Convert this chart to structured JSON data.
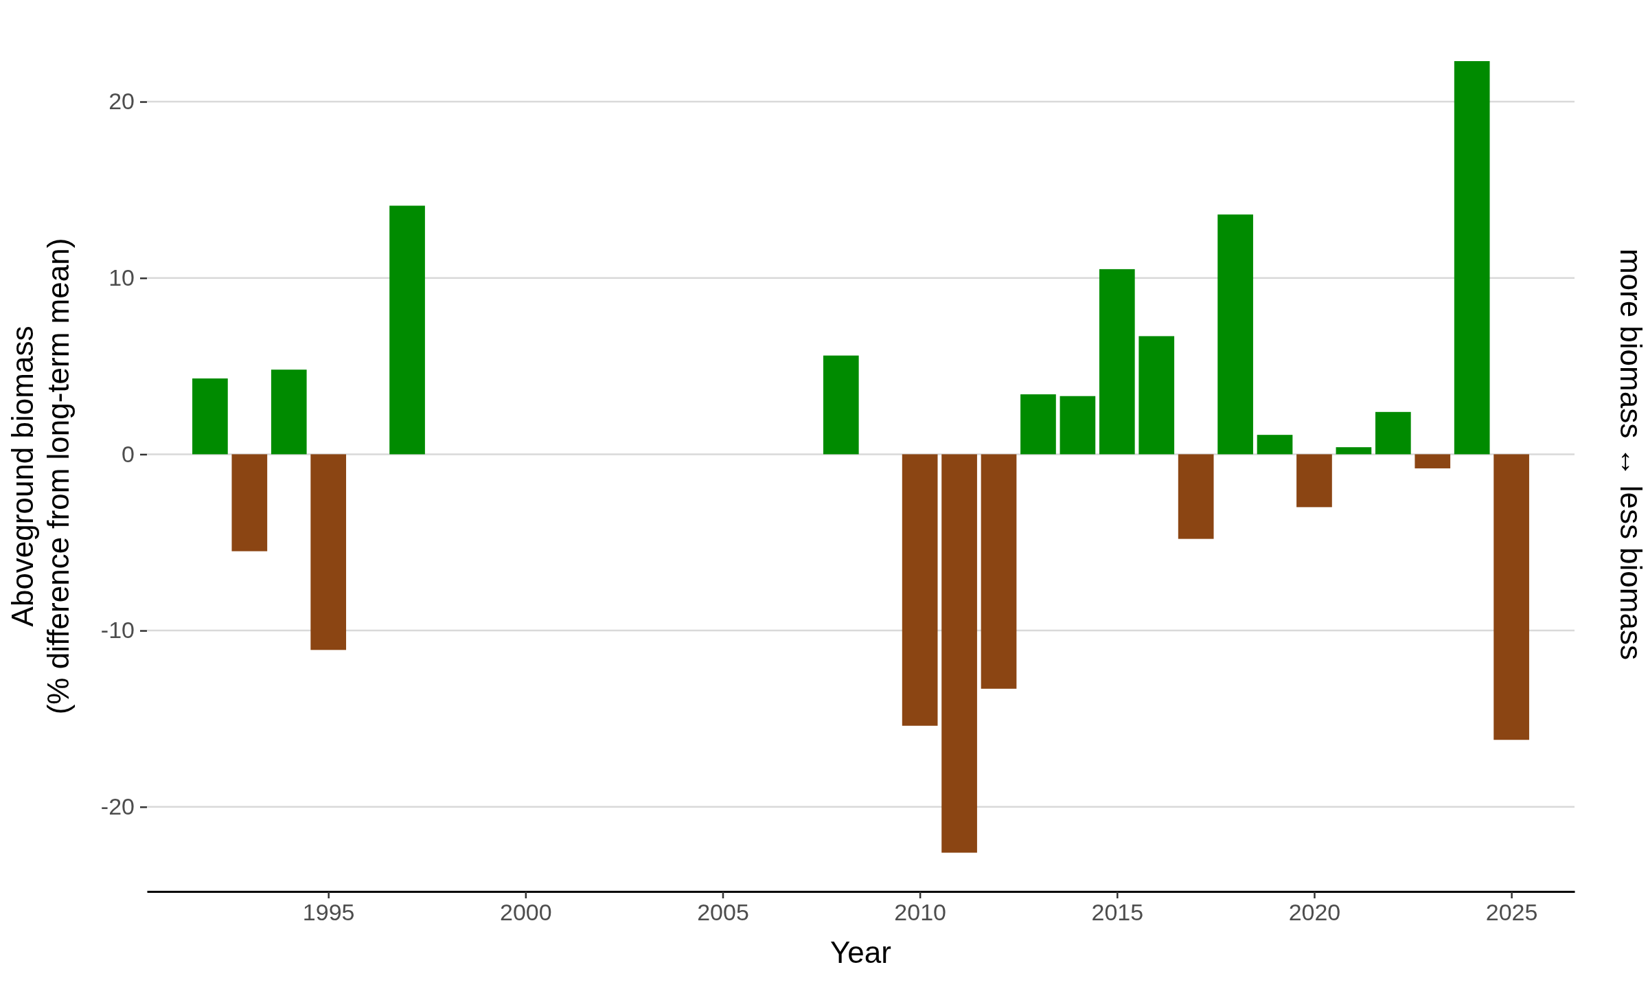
{
  "chart_data": {
    "type": "bar",
    "xlabel": "Year",
    "ylabel": "Aboveground biomass\n(% difference from long-term mean)",
    "annotations": [
      "more biomass ↔ less biomass"
    ],
    "x": [
      1992,
      1993,
      1994,
      1995,
      1997,
      2008,
      2010,
      2011,
      2012,
      2013,
      2014,
      2015,
      2016,
      2017,
      2018,
      2019,
      2020,
      2021,
      2022,
      2023,
      2024,
      2025
    ],
    "values": [
      4.3,
      -5.5,
      4.8,
      -11.1,
      14.1,
      5.6,
      -15.4,
      -22.6,
      -13.3,
      3.4,
      3.3,
      10.5,
      6.7,
      -4.8,
      13.6,
      1.1,
      -3.0,
      0.4,
      2.4,
      -0.8,
      22.3,
      -16.2
    ],
    "colors": [
      "#008b00",
      "#8b4513",
      "#008b00",
      "#8b4513",
      "#008b00",
      "#008b00",
      "#8b4513",
      "#8b4513",
      "#8b4513",
      "#008b00",
      "#008b00",
      "#008b00",
      "#008b00",
      "#8b4513",
      "#008b00",
      "#008b00",
      "#8b4513",
      "#008b00",
      "#008b00",
      "#8b4513",
      "#008b00",
      "#8b4513"
    ],
    "xlim": [
      1990.4,
      2026.6
    ],
    "xticks": [
      1995,
      2000,
      2005,
      2010,
      2015,
      2020,
      2025
    ],
    "ylim": [
      -24.8,
      22.3
    ],
    "yticks": [
      -20,
      -10,
      0,
      10,
      20
    ],
    "grid": "y"
  }
}
